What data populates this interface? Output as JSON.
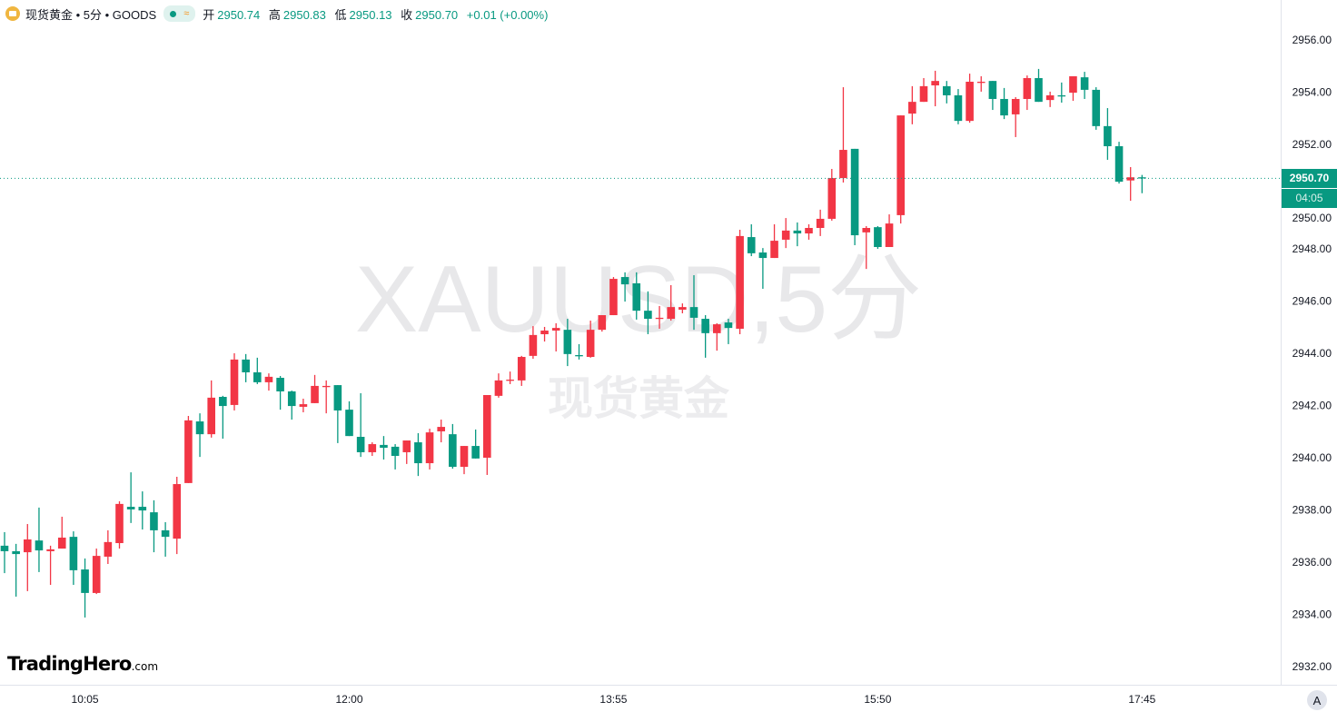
{
  "header": {
    "symbol_icon": "gold-bars-icon",
    "title": "现货黄金 • 5分 • GOODS",
    "market_status": "open",
    "ohlc": [
      {
        "label": "开",
        "value": "2950.74"
      },
      {
        "label": "高",
        "value": "2950.83"
      },
      {
        "label": "低",
        "value": "2950.13"
      },
      {
        "label": "收",
        "value": "2950.70"
      }
    ],
    "change": "+0.01 (+0.00%)"
  },
  "watermark": {
    "symbol": "XAUUSD,5分",
    "name": "现货黄金"
  },
  "logo": {
    "brand": "TradingHero",
    "suffix": ".com"
  },
  "current_price": {
    "value": "2950.70",
    "countdown": "04:05"
  },
  "auto_scale_label": "A",
  "colors": {
    "up": "#F23645",
    "down": "#089981",
    "price_line": "#089981"
  },
  "chart_data": {
    "type": "candlestick",
    "interval": "5分",
    "ylim": [
      2931,
      2957.5
    ],
    "y_ticks": [
      "2932.00",
      "2934.00",
      "2936.00",
      "2938.00",
      "2940.00",
      "2942.00",
      "2944.00",
      "2946.00",
      "2948.00",
      "2950.00",
      "2952.00",
      "2954.00",
      "2956.00"
    ],
    "x_ticks": [
      "10:05",
      "12:00",
      "13:55",
      "15:50",
      "17:45"
    ],
    "grid": false,
    "fields": [
      "time",
      "open",
      "high",
      "low",
      "close"
    ],
    "candles": [
      [
        "09:30",
        2936.63,
        2937.15,
        2935.58,
        2936.42
      ],
      [
        "09:35",
        2936.42,
        2936.7,
        2934.68,
        2936.31
      ],
      [
        "09:40",
        2936.38,
        2937.46,
        2934.89,
        2936.87
      ],
      [
        "09:45",
        2936.83,
        2938.09,
        2935.62,
        2936.45
      ],
      [
        "09:50",
        2936.42,
        2936.63,
        2935.13,
        2936.49
      ],
      [
        "09:55",
        2936.52,
        2937.74,
        2936.52,
        2936.94
      ],
      [
        "10:00",
        2936.97,
        2937.18,
        2935.13,
        2935.69
      ],
      [
        "10:05",
        2935.72,
        2936.14,
        2933.88,
        2934.82
      ],
      [
        "10:10",
        2934.82,
        2936.52,
        2934.78,
        2936.24
      ],
      [
        "10:15",
        2936.21,
        2937.22,
        2935.93,
        2936.77
      ],
      [
        "10:20",
        2936.73,
        2938.33,
        2936.52,
        2938.23
      ],
      [
        "10:25",
        2938.12,
        2939.44,
        2937.5,
        2938.02
      ],
      [
        "10:30",
        2938.12,
        2938.71,
        2937.25,
        2937.98
      ],
      [
        "10:35",
        2937.91,
        2938.37,
        2936.38,
        2937.22
      ],
      [
        "10:40",
        2937.22,
        2937.53,
        2936.21,
        2936.97
      ],
      [
        "10:45",
        2936.9,
        2939.27,
        2936.31,
        2938.99
      ],
      [
        "10:50",
        2939.03,
        2941.6,
        2939.03,
        2941.43
      ],
      [
        "10:55",
        2941.39,
        2941.7,
        2940.03,
        2940.9
      ],
      [
        "11:00",
        2940.9,
        2942.96,
        2940.77,
        2942.3
      ],
      [
        "11:05",
        2942.33,
        2942.37,
        2940.73,
        2941.98
      ],
      [
        "11:10",
        2942.02,
        2944.0,
        2941.81,
        2943.76
      ],
      [
        "11:15",
        2943.76,
        2943.97,
        2942.89,
        2943.27
      ],
      [
        "11:20",
        2943.27,
        2943.83,
        2942.82,
        2942.89
      ],
      [
        "11:25",
        2942.89,
        2943.23,
        2942.57,
        2943.1
      ],
      [
        "11:30",
        2943.06,
        2943.13,
        2941.84,
        2942.54
      ],
      [
        "11:35",
        2942.54,
        2942.57,
        2941.46,
        2941.98
      ],
      [
        "11:40",
        2941.95,
        2942.26,
        2941.74,
        2942.05
      ],
      [
        "11:45",
        2942.09,
        2943.17,
        2942.09,
        2942.75
      ],
      [
        "11:50",
        2942.73,
        2942.96,
        2941.7,
        2942.75
      ],
      [
        "11:55",
        2942.78,
        2942.78,
        2940.56,
        2941.81
      ],
      [
        "12:00",
        2941.84,
        2942.16,
        2940.83,
        2940.83
      ],
      [
        "12:05",
        2940.8,
        2942.47,
        2940.03,
        2940.21
      ],
      [
        "12:10",
        2940.21,
        2940.59,
        2940.07,
        2940.52
      ],
      [
        "12:15",
        2940.49,
        2940.83,
        2939.93,
        2940.38
      ],
      [
        "12:20",
        2940.42,
        2940.52,
        2939.55,
        2940.07
      ],
      [
        "12:25",
        2940.21,
        2940.66,
        2939.76,
        2940.66
      ],
      [
        "12:30",
        2940.59,
        2940.94,
        2939.3,
        2939.79
      ],
      [
        "12:35",
        2939.79,
        2941.11,
        2939.55,
        2940.97
      ],
      [
        "12:40",
        2941.01,
        2941.46,
        2940.59,
        2941.18
      ],
      [
        "12:45",
        2940.9,
        2941.29,
        2939.58,
        2939.65
      ],
      [
        "12:50",
        2939.65,
        2940.45,
        2939.37,
        2940.45
      ],
      [
        "12:55",
        2940.45,
        2941.08,
        2939.97,
        2939.97
      ],
      [
        "13:00",
        2940.0,
        2942.4,
        2939.34,
        2942.4
      ],
      [
        "13:05",
        2942.37,
        2943.23,
        2942.3,
        2942.96
      ],
      [
        "13:10",
        2942.98,
        2943.3,
        2942.82,
        2942.99
      ],
      [
        "13:15",
        2942.96,
        2943.9,
        2942.75,
        2943.86
      ],
      [
        "13:20",
        2943.9,
        2945.04,
        2943.79,
        2944.7
      ],
      [
        "13:25",
        2944.73,
        2945.01,
        2944.45,
        2944.87
      ],
      [
        "13:30",
        2944.87,
        2945.15,
        2944.07,
        2944.97
      ],
      [
        "13:35",
        2944.9,
        2945.32,
        2943.51,
        2943.97
      ],
      [
        "13:40",
        2943.93,
        2944.35,
        2943.76,
        2943.92
      ],
      [
        "13:45",
        2943.86,
        2945.25,
        2943.83,
        2944.9
      ],
      [
        "13:50",
        2944.9,
        2945.46,
        2944.83,
        2945.46
      ],
      [
        "13:55",
        2945.46,
        2946.92,
        2945.46,
        2946.85
      ],
      [
        "14:00",
        2946.92,
        2947.1,
        2945.98,
        2946.64
      ],
      [
        "14:05",
        2946.68,
        2947.1,
        2945.29,
        2945.63
      ],
      [
        "14:10",
        2945.63,
        2946.37,
        2944.73,
        2945.32
      ],
      [
        "14:15",
        2945.34,
        2945.81,
        2944.94,
        2945.36
      ],
      [
        "14:20",
        2945.32,
        2946.61,
        2945.25,
        2945.77
      ],
      [
        "14:25",
        2945.67,
        2945.91,
        2945.53,
        2945.77
      ],
      [
        "14:30",
        2945.77,
        2946.99,
        2944.9,
        2945.36
      ],
      [
        "14:35",
        2945.32,
        2945.46,
        2943.83,
        2944.77
      ],
      [
        "14:40",
        2944.77,
        2945.15,
        2944.1,
        2945.11
      ],
      [
        "14:45",
        2945.18,
        2945.32,
        2944.35,
        2944.97
      ],
      [
        "14:50",
        2944.94,
        2948.73,
        2944.73,
        2948.49
      ],
      [
        "14:55",
        2948.45,
        2948.94,
        2947.72,
        2947.83
      ],
      [
        "15:00",
        2947.86,
        2948.03,
        2946.47,
        2947.65
      ],
      [
        "15:05",
        2947.65,
        2948.94,
        2947.65,
        2948.31
      ],
      [
        "15:10",
        2948.35,
        2949.18,
        2948.03,
        2948.7
      ],
      [
        "15:15",
        2948.7,
        2949.01,
        2948.1,
        2948.59
      ],
      [
        "15:20",
        2948.59,
        2948.94,
        2948.35,
        2948.8
      ],
      [
        "15:25",
        2948.8,
        2949.5,
        2948.49,
        2949.15
      ],
      [
        "15:30",
        2949.15,
        2951.06,
        2949.08,
        2950.71
      ],
      [
        "15:35",
        2950.71,
        2954.19,
        2950.54,
        2951.79
      ],
      [
        "15:40",
        2951.83,
        2951.83,
        2948.14,
        2948.52
      ],
      [
        "15:45",
        2948.63,
        2948.87,
        2947.23,
        2948.8
      ],
      [
        "15:50",
        2948.83,
        2948.87,
        2948.0,
        2948.07
      ],
      [
        "15:55",
        2948.07,
        2949.32,
        2948.07,
        2948.97
      ],
      [
        "16:00",
        2949.29,
        2953.11,
        2948.97,
        2953.11
      ],
      [
        "16:05",
        2953.18,
        2954.23,
        2952.77,
        2953.63
      ],
      [
        "16:10",
        2953.63,
        2954.54,
        2953.63,
        2954.23
      ],
      [
        "16:15",
        2954.26,
        2954.82,
        2953.46,
        2954.43
      ],
      [
        "16:20",
        2954.23,
        2954.43,
        2953.57,
        2953.88
      ],
      [
        "16:25",
        2953.88,
        2954.12,
        2952.77,
        2952.9
      ],
      [
        "16:30",
        2952.9,
        2954.71,
        2952.83,
        2954.4
      ],
      [
        "16:35",
        2954.38,
        2954.61,
        2954.02,
        2954.4
      ],
      [
        "16:40",
        2954.43,
        2954.43,
        2953.32,
        2953.74
      ],
      [
        "16:45",
        2953.74,
        2954.16,
        2952.97,
        2953.11
      ],
      [
        "16:50",
        2953.15,
        2953.81,
        2952.28,
        2953.74
      ],
      [
        "16:55",
        2953.74,
        2954.64,
        2953.32,
        2954.54
      ],
      [
        "17:00",
        2954.54,
        2954.89,
        2953.63,
        2953.63
      ],
      [
        "17:05",
        2953.7,
        2954.02,
        2953.43,
        2953.88
      ],
      [
        "17:10",
        2953.88,
        2954.37,
        2953.6,
        2953.86
      ],
      [
        "17:15",
        2953.98,
        2954.61,
        2953.67,
        2954.61
      ],
      [
        "17:20",
        2954.57,
        2954.78,
        2953.74,
        2954.09
      ],
      [
        "17:25",
        2954.09,
        2954.19,
        2952.56,
        2952.7
      ],
      [
        "17:30",
        2952.7,
        2953.39,
        2951.41,
        2951.93
      ],
      [
        "17:35",
        2951.93,
        2952.1,
        2950.5,
        2950.57
      ],
      [
        "17:40",
        2950.62,
        2951.13,
        2949.84,
        2950.74
      ],
      [
        "17:45",
        2950.74,
        2950.83,
        2950.13,
        2950.7
      ]
    ]
  }
}
